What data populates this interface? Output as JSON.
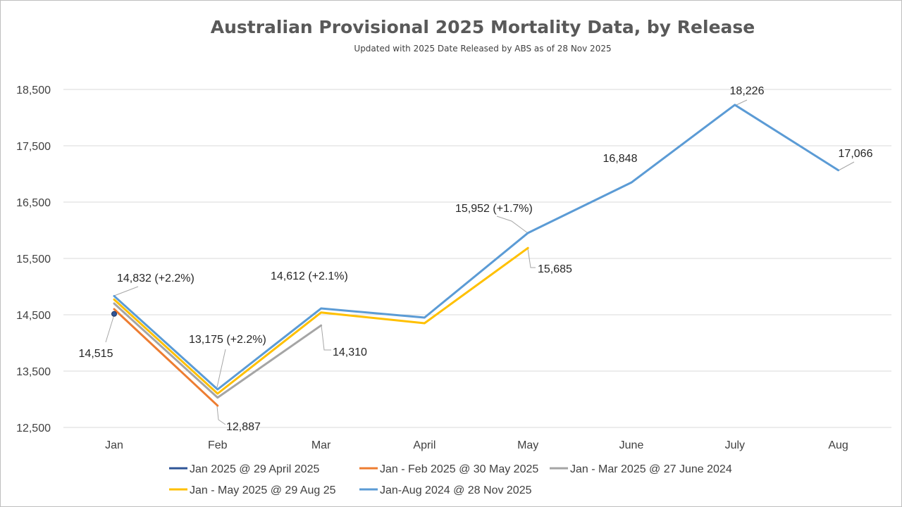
{
  "chart_data": {
    "type": "line",
    "title": "Australian Provisional 2025 Mortality Data, by Release",
    "subtitle": "Updated with 2025 Date Released by ABS as of 28 Nov 2025",
    "categories": [
      "Jan",
      "Feb",
      "Mar",
      "April",
      "May",
      "June",
      "July",
      "Aug"
    ],
    "ylim": [
      12500,
      18500
    ],
    "yticks": [
      12500,
      13500,
      14500,
      15500,
      16500,
      17500,
      18500
    ],
    "ytick_labels": [
      "12,500",
      "13,500",
      "14,500",
      "15,500",
      "16,500",
      "17,500",
      "18,500"
    ],
    "grid": true,
    "legend_position": "bottom",
    "series": [
      {
        "name": "Jan 2025 @ 29 April 2025",
        "color": "#2f5597",
        "values": [
          14515,
          null,
          null,
          null,
          null,
          null,
          null,
          null
        ]
      },
      {
        "name": "Jan - Feb 2025 @ 30 May 2025",
        "color": "#ed7d31",
        "values": [
          14600,
          12887,
          null,
          null,
          null,
          null,
          null,
          null
        ]
      },
      {
        "name": "Jan - Mar 2025 @ 27 June 2024",
        "color": "#a5a5a5",
        "values": [
          14700,
          13030,
          14310,
          null,
          null,
          null,
          null,
          null
        ]
      },
      {
        "name": "Jan - May 2025 @ 29 Aug 25",
        "color": "#ffc000",
        "values": [
          14770,
          13100,
          14540,
          14350,
          15685,
          null,
          null,
          null
        ]
      },
      {
        "name": "Jan-Aug 2024 @ 28 Nov 2025",
        "color": "#5b9bd5",
        "values": [
          14832,
          13175,
          14612,
          14450,
          15952,
          16848,
          18226,
          17066
        ]
      }
    ],
    "data_labels": [
      {
        "text": "14,515"
      },
      {
        "text": "14,832 (+2.2%)"
      },
      {
        "text": "13,175 (+2.2%)"
      },
      {
        "text": "12,887"
      },
      {
        "text": "14,612 (+2.1%)"
      },
      {
        "text": "14,310"
      },
      {
        "text": "15,952 (+1.7%)"
      },
      {
        "text": "15,685"
      },
      {
        "text": "16,848"
      },
      {
        "text": "18,226"
      },
      {
        "text": "17,066"
      }
    ]
  }
}
